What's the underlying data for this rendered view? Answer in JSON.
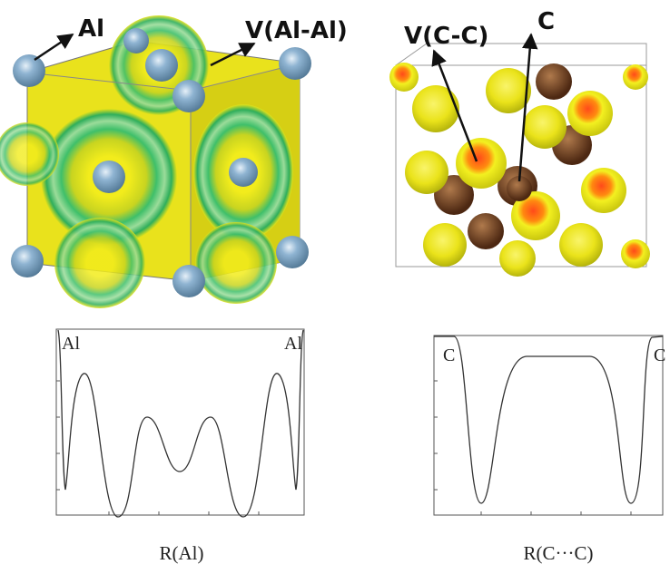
{
  "panels": [
    {
      "labels": [
        "Al",
        "V(Al-Al)"
      ]
    },
    {
      "labels": [
        "V(C-C)",
        "C"
      ]
    }
  ],
  "plots": [
    {
      "end_labels": [
        "Al",
        "Al"
      ],
      "x_label": "R(Al)"
    },
    {
      "end_labels": [
        "C",
        "C"
      ],
      "x_label": "R(C···C)"
    }
  ]
}
